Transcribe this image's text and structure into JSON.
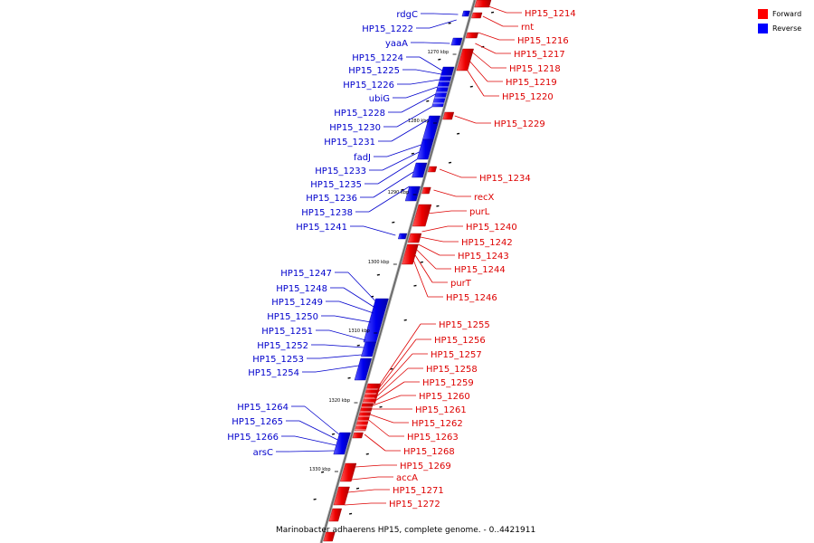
{
  "caption": "Marinobacter adhaerens HP15, complete genome. - 0..4421911",
  "legend": [
    {
      "label": "Forward",
      "color": "#ff0000"
    },
    {
      "label": "Reverse",
      "color": "#0000ff"
    }
  ],
  "colors": {
    "forward": "#ff0000",
    "forward_line": "#dd0000",
    "reverse": "#0000ff",
    "reverse_line": "#0000cc",
    "backbone": "#888888"
  },
  "ticks": [
    "1270 kbp",
    "1280 kbp",
    "1290 kbp",
    "1300 kbp",
    "1310 kbp",
    "1320 kbp",
    "1330 kbp"
  ],
  "forward_labels": [
    "HP15_1214",
    "rnt",
    "HP15_1216",
    "HP15_1217",
    "HP15_1218",
    "HP15_1219",
    "HP15_1220",
    "HP15_1229",
    "HP15_1234",
    "recX",
    "purL",
    "HP15_1240",
    "HP15_1242",
    "HP15_1243",
    "HP15_1244",
    "purT",
    "HP15_1246",
    "HP15_1255",
    "HP15_1256",
    "HP15_1257",
    "HP15_1258",
    "HP15_1259",
    "HP15_1260",
    "HP15_1261",
    "HP15_1262",
    "HP15_1263",
    "HP15_1268",
    "HP15_1269",
    "accA",
    "HP15_1271",
    "HP15_1272"
  ],
  "reverse_labels": [
    "rdgC",
    "HP15_1222",
    "yaaA",
    "HP15_1224",
    "HP15_1225",
    "HP15_1226",
    "ubiG",
    "HP15_1228",
    "HP15_1230",
    "HP15_1231",
    "fadJ",
    "HP15_1233",
    "HP15_1235",
    "HP15_1236",
    "HP15_1238",
    "HP15_1241",
    "HP15_1247",
    "HP15_1248",
    "HP15_1249",
    "HP15_1250",
    "HP15_1251",
    "HP15_1252",
    "HP15_1253",
    "HP15_1254",
    "HP15_1264",
    "HP15_1265",
    "HP15_1266",
    "arsC"
  ]
}
